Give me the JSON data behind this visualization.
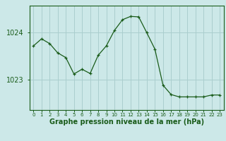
{
  "x": [
    0,
    1,
    2,
    3,
    4,
    5,
    6,
    7,
    8,
    9,
    10,
    11,
    12,
    13,
    14,
    15,
    16,
    17,
    18,
    19,
    20,
    21,
    22,
    23
  ],
  "y": [
    1023.72,
    1023.87,
    1023.77,
    1023.57,
    1023.47,
    1023.12,
    1023.22,
    1023.13,
    1023.52,
    1023.72,
    1024.05,
    1024.28,
    1024.35,
    1024.34,
    1024.0,
    1023.65,
    1022.88,
    1022.68,
    1022.63,
    1022.63,
    1022.63,
    1022.63,
    1022.67,
    1022.67
  ],
  "line_color": "#1a5c1a",
  "marker": "+",
  "bg_color": "#cce8e8",
  "grid_color": "#aacece",
  "axis_color": "#1a5c1a",
  "xlabel": "Graphe pression niveau de la mer (hPa)",
  "yticks": [
    1023,
    1024
  ],
  "ylim": [
    1022.35,
    1024.58
  ],
  "xlim": [
    -0.5,
    23.5
  ],
  "label_fontsize": 7,
  "xtick_fontsize": 5,
  "ytick_fontsize": 7
}
